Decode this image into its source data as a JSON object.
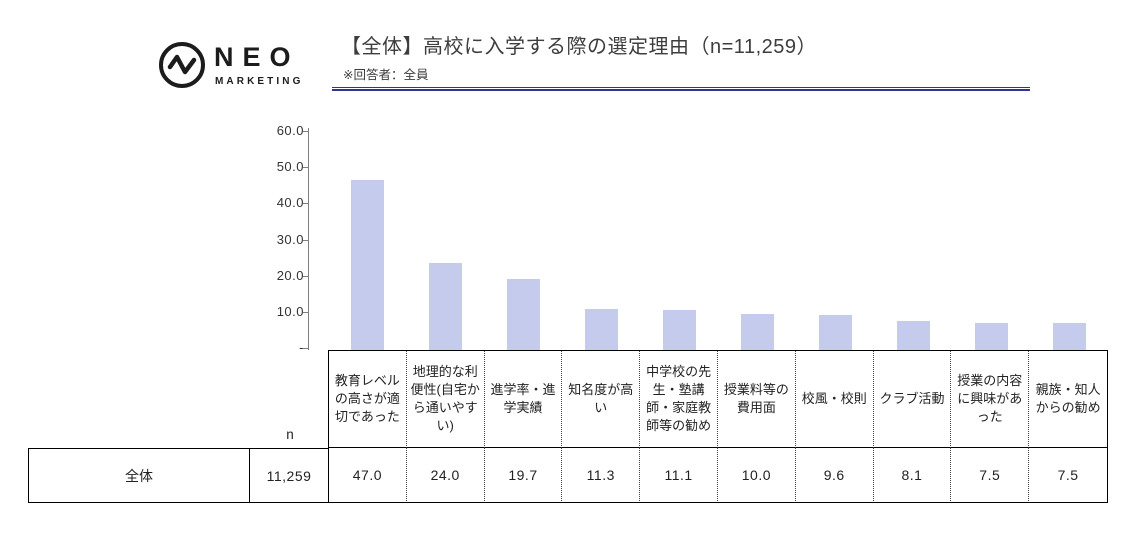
{
  "header": {
    "logo_name": "NEO",
    "logo_sub": "MARKETING",
    "title": "【全体】高校に入学する際の選定理由（n=11,259）",
    "subtitle": "※回答者：全員"
  },
  "colors": {
    "bar": "#c5cbec",
    "accent_line": "#2d3792",
    "axis": "#7f7f7f"
  },
  "chart_data": {
    "type": "bar",
    "title": "【全体】高校に入学する際の選定理由（n=11,259）",
    "categories": [
      "教育レベルの高さが適切であった",
      "地理的な利便性(自宅から通いやすい)",
      "進学率・進学実績",
      "知名度が高い",
      "中学校の先生・塾講師・家庭教師等の勧め",
      "授業料等の費用面",
      "校風・校則",
      "クラブ活動",
      "授業の内容に興味があった",
      "親族・知人からの勧め"
    ],
    "values": [
      47.0,
      24.0,
      19.7,
      11.3,
      11.1,
      10.0,
      9.6,
      8.1,
      7.5,
      7.5
    ],
    "ylim": [
      0,
      60
    ],
    "ytick_labels": [
      "60.0",
      "50.0",
      "40.0",
      "30.0",
      "20.0",
      "10.0",
      "-"
    ],
    "grid": false,
    "legend": null,
    "bar_color": "#c5cbec"
  },
  "table": {
    "row_label": "全体",
    "n_header": "n",
    "n_value": "11,259",
    "columns": [
      "教育レベルの高さが適切であった",
      "地理的な利便性(自宅から通いやすい)",
      "進学率・進学実績",
      "知名度が高い",
      "中学校の先生・塾講師・家庭教師等の勧め",
      "授業料等の費用面",
      "校風・校則",
      "クラブ活動",
      "授業の内容に興味があった",
      "親族・知人からの勧め"
    ],
    "values": [
      "47.0",
      "24.0",
      "19.7",
      "11.3",
      "11.1",
      "10.0",
      "9.6",
      "8.1",
      "7.5",
      "7.5"
    ]
  }
}
